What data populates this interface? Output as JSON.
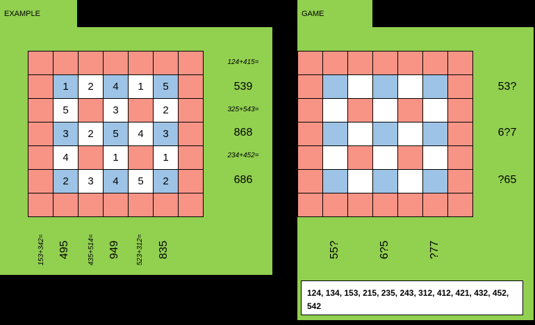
{
  "example": {
    "tab_label": "EXAMPLE",
    "grid": [
      [
        {
          "v": "",
          "c": "r"
        },
        {
          "v": "",
          "c": "r"
        },
        {
          "v": "",
          "c": "r"
        },
        {
          "v": "",
          "c": "r"
        },
        {
          "v": "",
          "c": "r"
        },
        {
          "v": "",
          "c": "r"
        },
        {
          "v": "",
          "c": "r"
        }
      ],
      [
        {
          "v": "",
          "c": "r"
        },
        {
          "v": "1",
          "c": "b"
        },
        {
          "v": "2",
          "c": "w"
        },
        {
          "v": "4",
          "c": "b"
        },
        {
          "v": "1",
          "c": "w"
        },
        {
          "v": "5",
          "c": "b"
        },
        {
          "v": "",
          "c": "r"
        }
      ],
      [
        {
          "v": "",
          "c": "r"
        },
        {
          "v": "5",
          "c": "w"
        },
        {
          "v": "",
          "c": "r"
        },
        {
          "v": "3",
          "c": "w"
        },
        {
          "v": "",
          "c": "r"
        },
        {
          "v": "2",
          "c": "w"
        },
        {
          "v": "",
          "c": "r"
        }
      ],
      [
        {
          "v": "",
          "c": "r"
        },
        {
          "v": "3",
          "c": "b"
        },
        {
          "v": "2",
          "c": "w"
        },
        {
          "v": "5",
          "c": "b"
        },
        {
          "v": "4",
          "c": "w"
        },
        {
          "v": "3",
          "c": "b"
        },
        {
          "v": "",
          "c": "r"
        }
      ],
      [
        {
          "v": "",
          "c": "r"
        },
        {
          "v": "4",
          "c": "w"
        },
        {
          "v": "",
          "c": "r"
        },
        {
          "v": "1",
          "c": "w"
        },
        {
          "v": "",
          "c": "r"
        },
        {
          "v": "1",
          "c": "w"
        },
        {
          "v": "",
          "c": "r"
        }
      ],
      [
        {
          "v": "",
          "c": "r"
        },
        {
          "v": "2",
          "c": "b"
        },
        {
          "v": "3",
          "c": "w"
        },
        {
          "v": "4",
          "c": "b"
        },
        {
          "v": "5",
          "c": "w"
        },
        {
          "v": "2",
          "c": "b"
        },
        {
          "v": "",
          "c": "r"
        }
      ],
      [
        {
          "v": "",
          "c": "r"
        },
        {
          "v": "",
          "c": "r"
        },
        {
          "v": "",
          "c": "r"
        },
        {
          "v": "",
          "c": "r"
        },
        {
          "v": "",
          "c": "r"
        },
        {
          "v": "",
          "c": "r"
        },
        {
          "v": "",
          "c": "r"
        }
      ]
    ],
    "right": [
      {
        "eq": "124+415=",
        "num": "539"
      },
      {
        "eq": "325+543=",
        "num": "868"
      },
      {
        "eq": "234+452=",
        "num": "686"
      }
    ],
    "bottom": [
      {
        "eq": "153+342=",
        "num": "495"
      },
      {
        "eq": "435+514=",
        "num": "949"
      },
      {
        "eq": "523+312=",
        "num": "835"
      }
    ]
  },
  "game": {
    "tab_label": "GAME",
    "grid": [
      [
        {
          "v": "",
          "c": "r"
        },
        {
          "v": "",
          "c": "r"
        },
        {
          "v": "",
          "c": "r"
        },
        {
          "v": "",
          "c": "r"
        },
        {
          "v": "",
          "c": "r"
        },
        {
          "v": "",
          "c": "r"
        },
        {
          "v": "",
          "c": "r"
        }
      ],
      [
        {
          "v": "",
          "c": "r"
        },
        {
          "v": "",
          "c": "b"
        },
        {
          "v": "",
          "c": "w"
        },
        {
          "v": "",
          "c": "b"
        },
        {
          "v": "",
          "c": "w"
        },
        {
          "v": "",
          "c": "b"
        },
        {
          "v": "",
          "c": "r"
        }
      ],
      [
        {
          "v": "",
          "c": "r"
        },
        {
          "v": "",
          "c": "w"
        },
        {
          "v": "",
          "c": "r"
        },
        {
          "v": "",
          "c": "w"
        },
        {
          "v": "",
          "c": "r"
        },
        {
          "v": "",
          "c": "w"
        },
        {
          "v": "",
          "c": "r"
        }
      ],
      [
        {
          "v": "",
          "c": "r"
        },
        {
          "v": "",
          "c": "b"
        },
        {
          "v": "",
          "c": "w"
        },
        {
          "v": "",
          "c": "b"
        },
        {
          "v": "",
          "c": "w"
        },
        {
          "v": "",
          "c": "b"
        },
        {
          "v": "",
          "c": "r"
        }
      ],
      [
        {
          "v": "",
          "c": "r"
        },
        {
          "v": "",
          "c": "w"
        },
        {
          "v": "",
          "c": "r"
        },
        {
          "v": "",
          "c": "w"
        },
        {
          "v": "",
          "c": "r"
        },
        {
          "v": "",
          "c": "w"
        },
        {
          "v": "",
          "c": "r"
        }
      ],
      [
        {
          "v": "",
          "c": "r"
        },
        {
          "v": "",
          "c": "b"
        },
        {
          "v": "",
          "c": "w"
        },
        {
          "v": "",
          "c": "b"
        },
        {
          "v": "",
          "c": "w"
        },
        {
          "v": "",
          "c": "b"
        },
        {
          "v": "",
          "c": "r"
        }
      ],
      [
        {
          "v": "",
          "c": "r"
        },
        {
          "v": "",
          "c": "r"
        },
        {
          "v": "",
          "c": "r"
        },
        {
          "v": "",
          "c": "r"
        },
        {
          "v": "",
          "c": "r"
        },
        {
          "v": "",
          "c": "r"
        },
        {
          "v": "",
          "c": "r"
        }
      ]
    ],
    "right": [
      "53?",
      "6?7",
      "?65"
    ],
    "bottom": [
      "55?",
      "6?5",
      "?77"
    ],
    "answers": "124, 134, 153, 215, 235, 243, 312, 412, 421, 432, 452, 542"
  },
  "colors": {
    "panel": "#92d050",
    "red": "#f79486",
    "blue": "#9dc3e6",
    "white": "#ffffff",
    "background": "#000000"
  }
}
